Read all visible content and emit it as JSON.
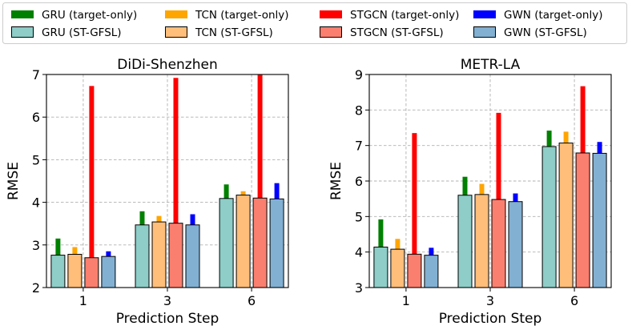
{
  "legend": {
    "placement": "top, full-width, 4 columns",
    "entries": [
      {
        "label": "GRU (target-only)",
        "color": "#008000",
        "style": "thin"
      },
      {
        "label": "TCN (target-only)",
        "color": "#ffa500",
        "style": "thin"
      },
      {
        "label": "STGCN (target-only)",
        "color": "#ff0000",
        "style": "thin"
      },
      {
        "label": "GWN (target-only)",
        "color": "#0000ff",
        "style": "thin"
      },
      {
        "label": "GRU (ST-GFSL)",
        "color": "#8ecdc8",
        "style": "box"
      },
      {
        "label": "TCN (ST-GFSL)",
        "color": "#ffbe7a",
        "style": "box"
      },
      {
        "label": "STGCN (ST-GFSL)",
        "color": "#fa7f6f",
        "style": "box"
      },
      {
        "label": "GWN (ST-GFSL)",
        "color": "#82b0d2",
        "style": "box"
      }
    ]
  },
  "chart_data": [
    {
      "type": "bar",
      "title": "DiDi-Shenzhen",
      "xlabel": "Prediction Step",
      "ylabel": "RMSE",
      "ylim": [
        2,
        7
      ],
      "yticks": [
        2,
        3,
        4,
        5,
        6,
        7
      ],
      "grid": true,
      "categories": [
        "1",
        "3",
        "6"
      ],
      "series": [
        {
          "name": "GRU (ST-GFSL)",
          "kind": "box",
          "values": [
            2.76,
            3.47,
            4.09
          ],
          "color": "#8ecdc8"
        },
        {
          "name": "GRU (target-only)",
          "kind": "thin",
          "values": [
            3.15,
            3.79,
            4.42
          ],
          "color": "#008000"
        },
        {
          "name": "TCN (ST-GFSL)",
          "kind": "box",
          "values": [
            2.78,
            3.54,
            4.17
          ],
          "color": "#ffbe7a"
        },
        {
          "name": "TCN (target-only)",
          "kind": "thin",
          "values": [
            2.95,
            3.68,
            4.26
          ],
          "color": "#ffa500"
        },
        {
          "name": "STGCN (ST-GFSL)",
          "kind": "box",
          "values": [
            2.7,
            3.51,
            4.1
          ],
          "color": "#fa7f6f"
        },
        {
          "name": "STGCN (target-only)",
          "kind": "thin",
          "values": [
            6.73,
            6.92,
            7.0
          ],
          "color": "#ff0000"
        },
        {
          "name": "GWN (ST-GFSL)",
          "kind": "box",
          "values": [
            2.73,
            3.47,
            4.08
          ],
          "color": "#82b0d2"
        },
        {
          "name": "GWN (target-only)",
          "kind": "thin",
          "values": [
            2.85,
            3.72,
            4.45
          ],
          "color": "#0000ff"
        }
      ]
    },
    {
      "type": "bar",
      "title": "METR-LA",
      "xlabel": "Prediction Step",
      "ylabel": "RMSE",
      "ylim": [
        3,
        9
      ],
      "yticks": [
        3,
        4,
        5,
        6,
        7,
        8,
        9
      ],
      "grid": true,
      "categories": [
        "1",
        "3",
        "6"
      ],
      "series": [
        {
          "name": "GRU (ST-GFSL)",
          "kind": "box",
          "values": [
            4.14,
            5.6,
            6.97
          ],
          "color": "#8ecdc8"
        },
        {
          "name": "GRU (target-only)",
          "kind": "thin",
          "values": [
            4.92,
            6.12,
            7.42
          ],
          "color": "#008000"
        },
        {
          "name": "TCN (ST-GFSL)",
          "kind": "box",
          "values": [
            4.08,
            5.62,
            7.07
          ],
          "color": "#ffbe7a"
        },
        {
          "name": "TCN (target-only)",
          "kind": "thin",
          "values": [
            4.37,
            5.92,
            7.39
          ],
          "color": "#ffa500"
        },
        {
          "name": "STGCN (ST-GFSL)",
          "kind": "box",
          "values": [
            3.94,
            5.48,
            6.79
          ],
          "color": "#fa7f6f"
        },
        {
          "name": "STGCN (target-only)",
          "kind": "thin",
          "values": [
            7.35,
            7.92,
            8.67
          ],
          "color": "#ff0000"
        },
        {
          "name": "GWN (ST-GFSL)",
          "kind": "box",
          "values": [
            3.91,
            5.42,
            6.78
          ],
          "color": "#82b0d2"
        },
        {
          "name": "GWN (target-only)",
          "kind": "thin",
          "values": [
            4.12,
            5.65,
            7.1
          ],
          "color": "#0000ff"
        }
      ]
    }
  ]
}
